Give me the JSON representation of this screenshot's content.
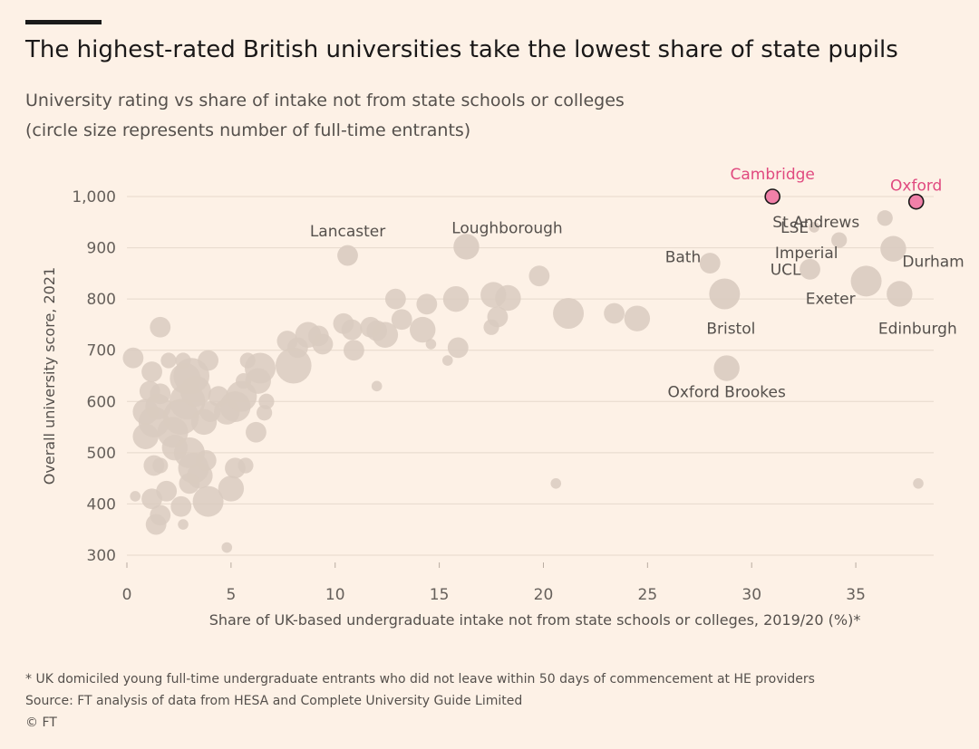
{
  "title": "The highest-rated British universities take the lowest share of state pupils",
  "subtitle_line1": "University rating vs share of intake not from state schools or colleges",
  "subtitle_line2": "(circle size represents number of full-time entrants)",
  "footnote": "* UK domiciled young full-time undergraduate entrants who did not leave within 50 days of commencement at HE providers",
  "source": "Source: FT analysis of data from HESA and Complete University Guide Limited",
  "copyright": "© FT",
  "colors": {
    "background": "#fdf1e6",
    "bubble": "#d9cbc0",
    "highlight_fill": "#f080a8",
    "highlight_stroke": "#1a1818",
    "highlight_text": "#e0497f",
    "grid": "#e6d9cc"
  },
  "chart_data": {
    "type": "scatter",
    "title": "The highest-rated British universities take the lowest share of state pupils",
    "xlabel": "Share of UK-based undergraduate intake not from state schools or colleges, 2019/20 (%)*",
    "ylabel": "Overall university score, 2021",
    "xlim": [
      0,
      38
    ],
    "ylim": [
      300,
      1000
    ],
    "xticks": [
      0,
      5,
      10,
      15,
      20,
      25,
      30,
      35
    ],
    "yticks": [
      300,
      400,
      500,
      600,
      700,
      800,
      900,
      1000
    ],
    "ytick_labels": [
      "300",
      "400",
      "500",
      "600",
      "700",
      "800",
      "900",
      "1,000"
    ],
    "grid": true,
    "size_meaning": "number of full-time entrants (relative)",
    "labeled_points": [
      {
        "name": "Cambridge",
        "x": 31.0,
        "y": 1000,
        "size": 3,
        "highlight": true
      },
      {
        "name": "Oxford",
        "x": 37.9,
        "y": 990,
        "size": 3,
        "highlight": true
      },
      {
        "name": "St Andrews",
        "x": 36.4,
        "y": 958,
        "size": 2,
        "highlight": false
      },
      {
        "name": "LSE",
        "x": 33.0,
        "y": 940,
        "size": 1,
        "highlight": false
      },
      {
        "name": "Imperial",
        "x": 34.2,
        "y": 915,
        "size": 2,
        "highlight": false
      },
      {
        "name": "Durham",
        "x": 36.8,
        "y": 898,
        "size": 4,
        "highlight": false
      },
      {
        "name": "UCL",
        "x": 32.8,
        "y": 858,
        "size": 3,
        "highlight": false
      },
      {
        "name": "Bath",
        "x": 28.0,
        "y": 870,
        "size": 3,
        "highlight": false
      },
      {
        "name": "Exeter",
        "x": 35.5,
        "y": 835,
        "size": 5,
        "highlight": false
      },
      {
        "name": "Edinburgh",
        "x": 37.1,
        "y": 810,
        "size": 4,
        "highlight": false
      },
      {
        "name": "Bristol",
        "x": 28.7,
        "y": 810,
        "size": 5,
        "highlight": false
      },
      {
        "name": "Lancaster",
        "x": 10.6,
        "y": 885,
        "size": 3,
        "highlight": false
      },
      {
        "name": "Loughborough",
        "x": 16.3,
        "y": 902,
        "size": 4,
        "highlight": false
      },
      {
        "name": "Oxford Brookes",
        "x": 28.8,
        "y": 665,
        "size": 4,
        "highlight": false
      }
    ],
    "unlabeled_points": [
      {
        "x": 0.3,
        "y": 685,
        "size": 3
      },
      {
        "x": 1.2,
        "y": 658,
        "size": 3
      },
      {
        "x": 1.6,
        "y": 745,
        "size": 3
      },
      {
        "x": 1.1,
        "y": 620,
        "size": 3
      },
      {
        "x": 1.6,
        "y": 615,
        "size": 3
      },
      {
        "x": 0.9,
        "y": 580,
        "size": 4
      },
      {
        "x": 1.3,
        "y": 560,
        "size": 5
      },
      {
        "x": 1.5,
        "y": 590,
        "size": 4
      },
      {
        "x": 0.9,
        "y": 532,
        "size": 4
      },
      {
        "x": 1.3,
        "y": 475,
        "size": 3
      },
      {
        "x": 1.6,
        "y": 475,
        "size": 2
      },
      {
        "x": 1.2,
        "y": 410,
        "size": 3
      },
      {
        "x": 1.9,
        "y": 425,
        "size": 3
      },
      {
        "x": 1.6,
        "y": 378,
        "size": 3
      },
      {
        "x": 1.4,
        "y": 360,
        "size": 3
      },
      {
        "x": 0.4,
        "y": 415,
        "size": 1
      },
      {
        "x": 2.2,
        "y": 540,
        "size": 5
      },
      {
        "x": 2.6,
        "y": 570,
        "size": 6
      },
      {
        "x": 2.3,
        "y": 510,
        "size": 4
      },
      {
        "x": 2.9,
        "y": 600,
        "size": 6
      },
      {
        "x": 2.8,
        "y": 645,
        "size": 5
      },
      {
        "x": 3.1,
        "y": 650,
        "size": 6
      },
      {
        "x": 3.3,
        "y": 620,
        "size": 5
      },
      {
        "x": 2.0,
        "y": 680,
        "size": 2
      },
      {
        "x": 2.7,
        "y": 680,
        "size": 2
      },
      {
        "x": 3.0,
        "y": 500,
        "size": 5
      },
      {
        "x": 3.2,
        "y": 470,
        "size": 5
      },
      {
        "x": 3.5,
        "y": 455,
        "size": 4
      },
      {
        "x": 3.0,
        "y": 440,
        "size": 3
      },
      {
        "x": 2.6,
        "y": 395,
        "size": 3
      },
      {
        "x": 2.7,
        "y": 360,
        "size": 1
      },
      {
        "x": 3.9,
        "y": 405,
        "size": 5
      },
      {
        "x": 3.8,
        "y": 485,
        "size": 3
      },
      {
        "x": 3.7,
        "y": 560,
        "size": 4
      },
      {
        "x": 4.0,
        "y": 580,
        "size": 3
      },
      {
        "x": 4.4,
        "y": 610,
        "size": 3
      },
      {
        "x": 3.9,
        "y": 680,
        "size": 3
      },
      {
        "x": 4.8,
        "y": 580,
        "size": 4
      },
      {
        "x": 5.2,
        "y": 590,
        "size": 5
      },
      {
        "x": 5.5,
        "y": 610,
        "size": 5
      },
      {
        "x": 5.2,
        "y": 470,
        "size": 3
      },
      {
        "x": 5.7,
        "y": 475,
        "size": 2
      },
      {
        "x": 5.0,
        "y": 430,
        "size": 4
      },
      {
        "x": 4.8,
        "y": 315,
        "size": 1
      },
      {
        "x": 5.6,
        "y": 640,
        "size": 2
      },
      {
        "x": 5.8,
        "y": 680,
        "size": 2
      },
      {
        "x": 6.4,
        "y": 665,
        "size": 5
      },
      {
        "x": 6.3,
        "y": 640,
        "size": 4
      },
      {
        "x": 6.7,
        "y": 600,
        "size": 2
      },
      {
        "x": 6.6,
        "y": 578,
        "size": 2
      },
      {
        "x": 6.2,
        "y": 540,
        "size": 3
      },
      {
        "x": 7.7,
        "y": 718,
        "size": 3
      },
      {
        "x": 8.2,
        "y": 705,
        "size": 3
      },
      {
        "x": 8.7,
        "y": 730,
        "size": 4
      },
      {
        "x": 8.0,
        "y": 670,
        "size": 6
      },
      {
        "x": 9.2,
        "y": 728,
        "size": 3
      },
      {
        "x": 9.4,
        "y": 712,
        "size": 3
      },
      {
        "x": 10.4,
        "y": 752,
        "size": 3
      },
      {
        "x": 10.8,
        "y": 740,
        "size": 3
      },
      {
        "x": 10.9,
        "y": 700,
        "size": 3
      },
      {
        "x": 11.7,
        "y": 745,
        "size": 3
      },
      {
        "x": 12.0,
        "y": 738,
        "size": 3
      },
      {
        "x": 12.4,
        "y": 730,
        "size": 4
      },
      {
        "x": 12.0,
        "y": 630,
        "size": 1
      },
      {
        "x": 12.9,
        "y": 800,
        "size": 3
      },
      {
        "x": 13.2,
        "y": 760,
        "size": 3
      },
      {
        "x": 14.2,
        "y": 740,
        "size": 4
      },
      {
        "x": 14.4,
        "y": 790,
        "size": 3
      },
      {
        "x": 14.6,
        "y": 712,
        "size": 1
      },
      {
        "x": 15.4,
        "y": 680,
        "size": 1
      },
      {
        "x": 15.9,
        "y": 705,
        "size": 3
      },
      {
        "x": 15.8,
        "y": 800,
        "size": 4
      },
      {
        "x": 17.6,
        "y": 808,
        "size": 4
      },
      {
        "x": 17.8,
        "y": 765,
        "size": 3
      },
      {
        "x": 17.5,
        "y": 745,
        "size": 2
      },
      {
        "x": 18.3,
        "y": 802,
        "size": 4
      },
      {
        "x": 19.8,
        "y": 845,
        "size": 3
      },
      {
        "x": 21.2,
        "y": 772,
        "size": 5
      },
      {
        "x": 23.4,
        "y": 772,
        "size": 3
      },
      {
        "x": 24.5,
        "y": 762,
        "size": 4
      },
      {
        "x": 20.6,
        "y": 440,
        "size": 1
      },
      {
        "x": 38.0,
        "y": 440,
        "size": 1
      }
    ]
  }
}
